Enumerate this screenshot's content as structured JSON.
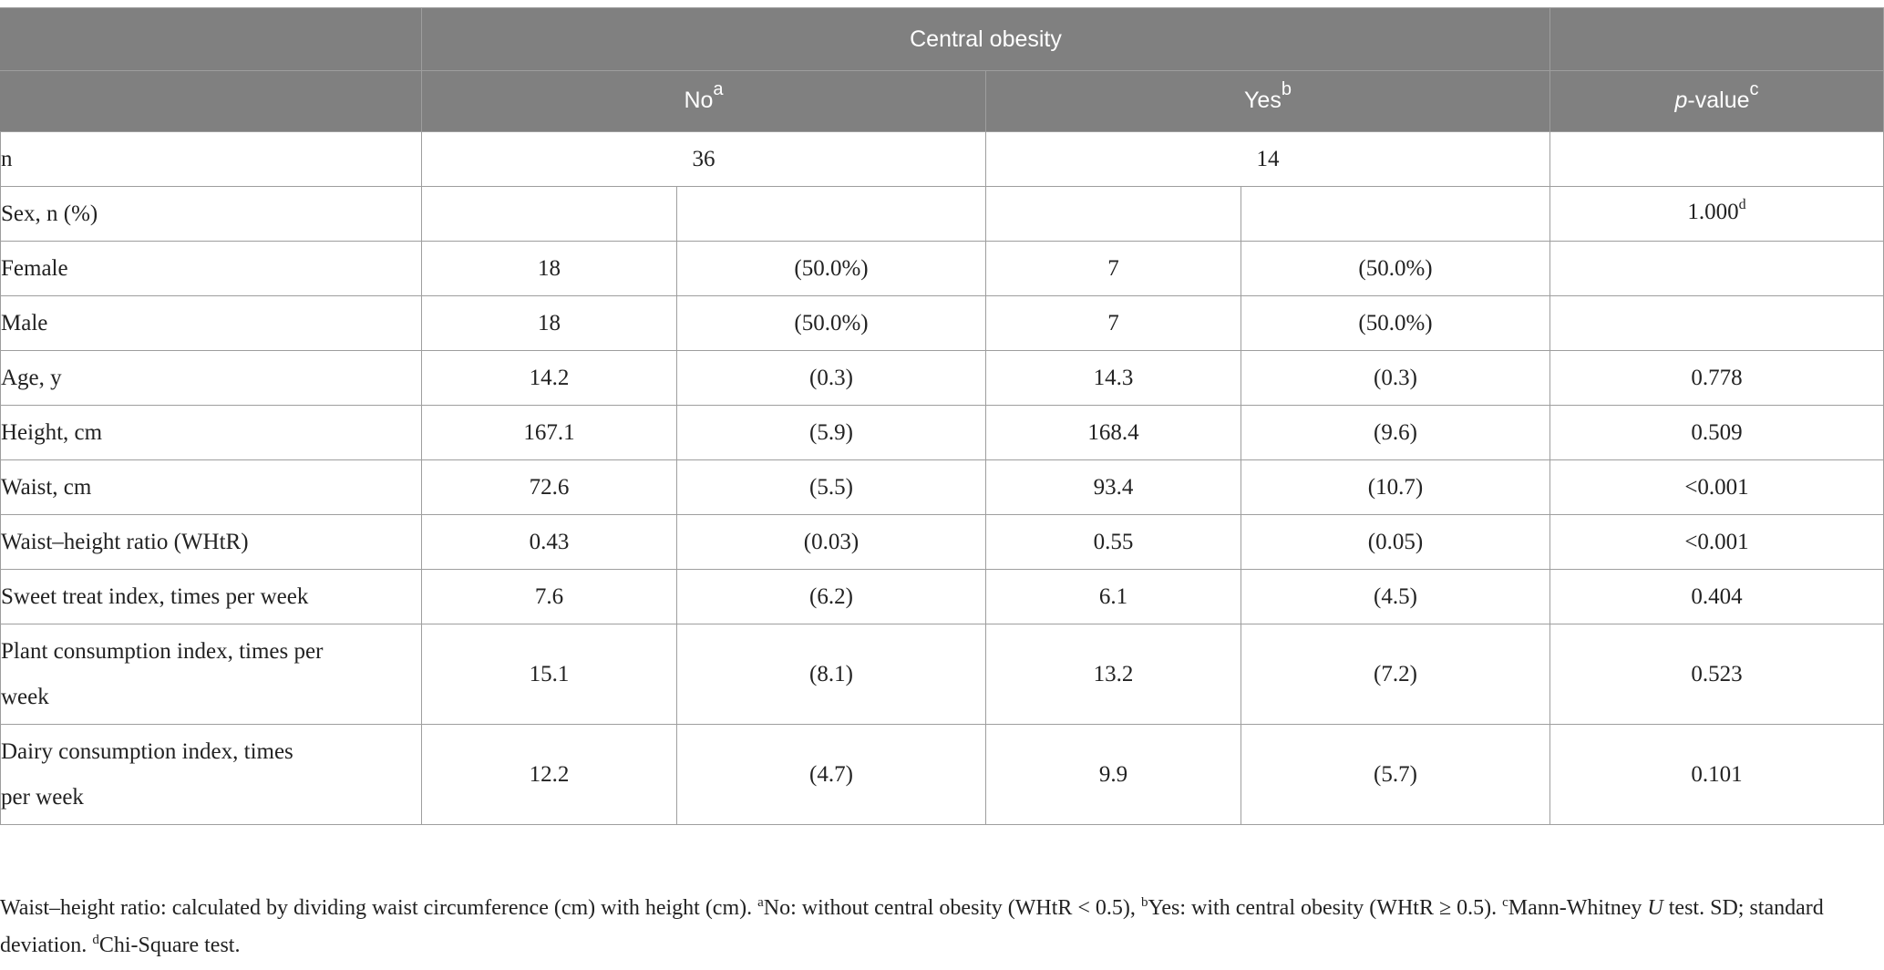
{
  "header": {
    "group_title": "Central obesity",
    "col_no": "No",
    "col_no_sup": "a",
    "col_yes": "Yes",
    "col_yes_sup": "b",
    "col_p_italic": "p",
    "col_p_rest": "-value",
    "col_p_sup": "c"
  },
  "n_row": {
    "label": "n",
    "no": "36",
    "yes": "14"
  },
  "sex_row": {
    "label": "Sex, n (%)",
    "p": "1.000",
    "p_sup": "d"
  },
  "rows": [
    {
      "label": "Female",
      "no_mean": "18",
      "no_sd": "(50.0%)",
      "yes_mean": "7",
      "yes_sd": "(50.0%)",
      "p": ""
    },
    {
      "label": "Male",
      "no_mean": "18",
      "no_sd": "(50.0%)",
      "yes_mean": "7",
      "yes_sd": "(50.0%)",
      "p": ""
    },
    {
      "label": "Age, y",
      "no_mean": "14.2",
      "no_sd": "(0.3)",
      "yes_mean": "14.3",
      "yes_sd": "(0.3)",
      "p": "0.778"
    },
    {
      "label": "Height, cm",
      "no_mean": "167.1",
      "no_sd": "(5.9)",
      "yes_mean": "168.4",
      "yes_sd": "(9.6)",
      "p": "0.509"
    },
    {
      "label": "Waist, cm",
      "no_mean": "72.6",
      "no_sd": "(5.5)",
      "yes_mean": "93.4",
      "yes_sd": "(10.7)",
      "p": "<0.001"
    },
    {
      "label": "Waist–height ratio (WHtR)",
      "no_mean": "0.43",
      "no_sd": "(0.03)",
      "yes_mean": "0.55",
      "yes_sd": "(0.05)",
      "p": "<0.001"
    },
    {
      "label": "Sweet treat index, times per week",
      "no_mean": "7.6",
      "no_sd": "(6.2)",
      "yes_mean": "6.1",
      "yes_sd": "(4.5)",
      "p": "0.404"
    }
  ],
  "tall_rows": [
    {
      "label_line1": "Plant consumption index, times per",
      "label_line2": "week",
      "no_mean": "15.1",
      "no_sd": "(8.1)",
      "yes_mean": "13.2",
      "yes_sd": "(7.2)",
      "p": "0.523"
    },
    {
      "label_line1": "Dairy consumption index, times",
      "label_line2": "per week",
      "no_mean": "12.2",
      "no_sd": "(4.7)",
      "yes_mean": "9.9",
      "yes_sd": "(5.7)",
      "p": "0.101"
    }
  ],
  "footnote": {
    "part1": "Waist–height ratio: calculated by dividing waist circumference (cm) with height (cm). ",
    "sup_a": "a",
    "part2": "No: without central obesity (WHtR < 0.5), ",
    "sup_b": "b",
    "part3": "Yes: with central obesity (WHtR ≥ 0.5). ",
    "sup_c": "c",
    "part4": "Mann-Whitney ",
    "u_italic": "U",
    "part5": " test. SD; standard deviation. ",
    "sup_d": "d",
    "part6": "Chi-Square test."
  }
}
